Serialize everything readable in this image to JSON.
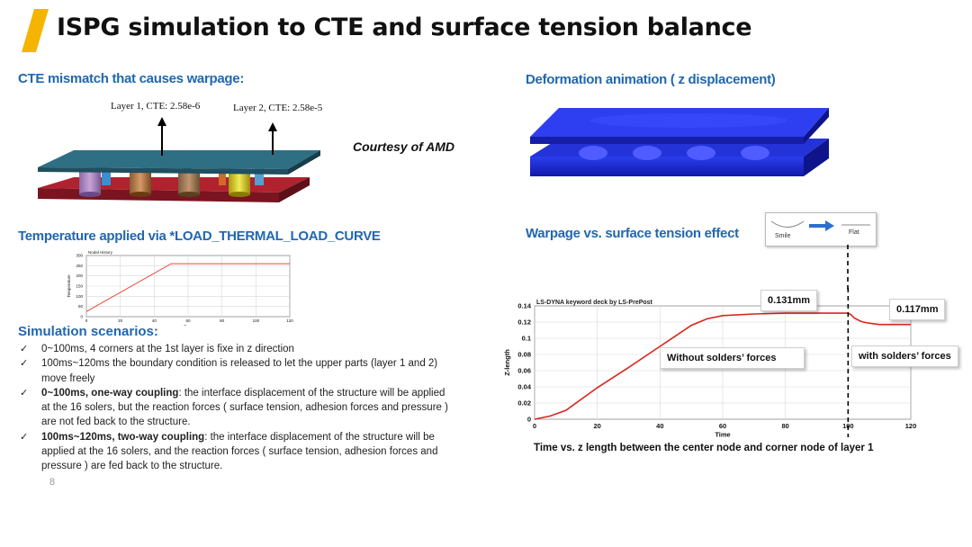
{
  "title": "ISPG simulation to CTE and surface tension balance",
  "sections": {
    "cte": "CTE mismatch that causes warpage:",
    "deformation": "Deformation animation ( z displacement)",
    "temperature": "Temperature applied via *LOAD_THERMAL_LOAD_CURVE",
    "warpage": "Warpage vs. surface tension effect"
  },
  "package": {
    "layer1_label": "Layer 1, CTE: 2.58e-6",
    "layer2_label": "Layer 2, CTE: 2.58e-5"
  },
  "courtesy": "Courtesy of AMD",
  "inset": {
    "left_label": "Smile",
    "right_label": "Flat"
  },
  "temperature_chart": {
    "chart_data": {
      "type": "line",
      "title": "Nodal History",
      "xlabel": "Time",
      "ylabel": "Temperature",
      "xlim": [
        0,
        120
      ],
      "ylim": [
        0,
        300
      ],
      "xticks": [
        "0",
        "20",
        "40",
        "60",
        "80",
        "100",
        "120"
      ],
      "yticks": [
        "0",
        "50",
        "100",
        "150",
        "200",
        "250",
        "300"
      ],
      "series": [
        {
          "x": [
            0,
            50,
            120
          ],
          "y": [
            25,
            260,
            260
          ],
          "color": "#e8463a"
        }
      ]
    }
  },
  "scenarios": {
    "title": "Simulation scenarios:",
    "items": [
      {
        "bold": "",
        "text": "0~100ms, 4 corners at the 1st layer is fixe in z direction"
      },
      {
        "bold": "",
        "text": "100ms~120ms the boundary condition is released to let the upper parts (layer 1 and 2) move freely"
      },
      {
        "bold": "0~100ms, one-way coupling",
        "text": ": the interface displacement of the structure will be applied at the 16 solers, but the reaction forces ( surface tension, adhesion forces and pressure ) are not fed back to the structure."
      },
      {
        "bold": "100ms~120ms, two-way coupling",
        "text": ": the interface displacement of the structure will be applied at the 16 solers, and the reaction forces ( surface tension, adhesion forces and pressure ) are fed back to the structure."
      }
    ]
  },
  "page_number": "8",
  "warpage_chart": {
    "header": "LS-DYNA keyword deck by LS-PrePost",
    "callouts": {
      "peak": "0.131mm",
      "end": "0.117mm",
      "without": "Without solders’ forces",
      "with": "with solders’ forces"
    },
    "caption": "Time vs. z length between the center node and corner node of  layer 1",
    "chart_data": {
      "type": "line",
      "xlabel": "Time",
      "ylabel": "Z-length",
      "xlim": [
        0,
        120
      ],
      "ylim": [
        0,
        0.14
      ],
      "xticks": [
        "0",
        "20",
        "40",
        "60",
        "80",
        "100",
        "120"
      ],
      "yticks": [
        "0",
        "0.02",
        "0.04",
        "0.06",
        "0.08",
        "0.1",
        "0.12",
        "0.14"
      ],
      "marker_x": 100,
      "series": [
        {
          "color": "#d8261c",
          "x": [
            0,
            5,
            10,
            20,
            30,
            40,
            45,
            50,
            55,
            60,
            70,
            80,
            90,
            99,
            100,
            101,
            102,
            104,
            106,
            108,
            110,
            115,
            120
          ],
          "y": [
            0,
            0.004,
            0.011,
            0.039,
            0.064,
            0.09,
            0.103,
            0.116,
            0.124,
            0.128,
            0.13,
            0.131,
            0.131,
            0.131,
            0.131,
            0.129,
            0.125,
            0.121,
            0.119,
            0.118,
            0.117,
            0.117,
            0.117
          ]
        }
      ]
    }
  }
}
